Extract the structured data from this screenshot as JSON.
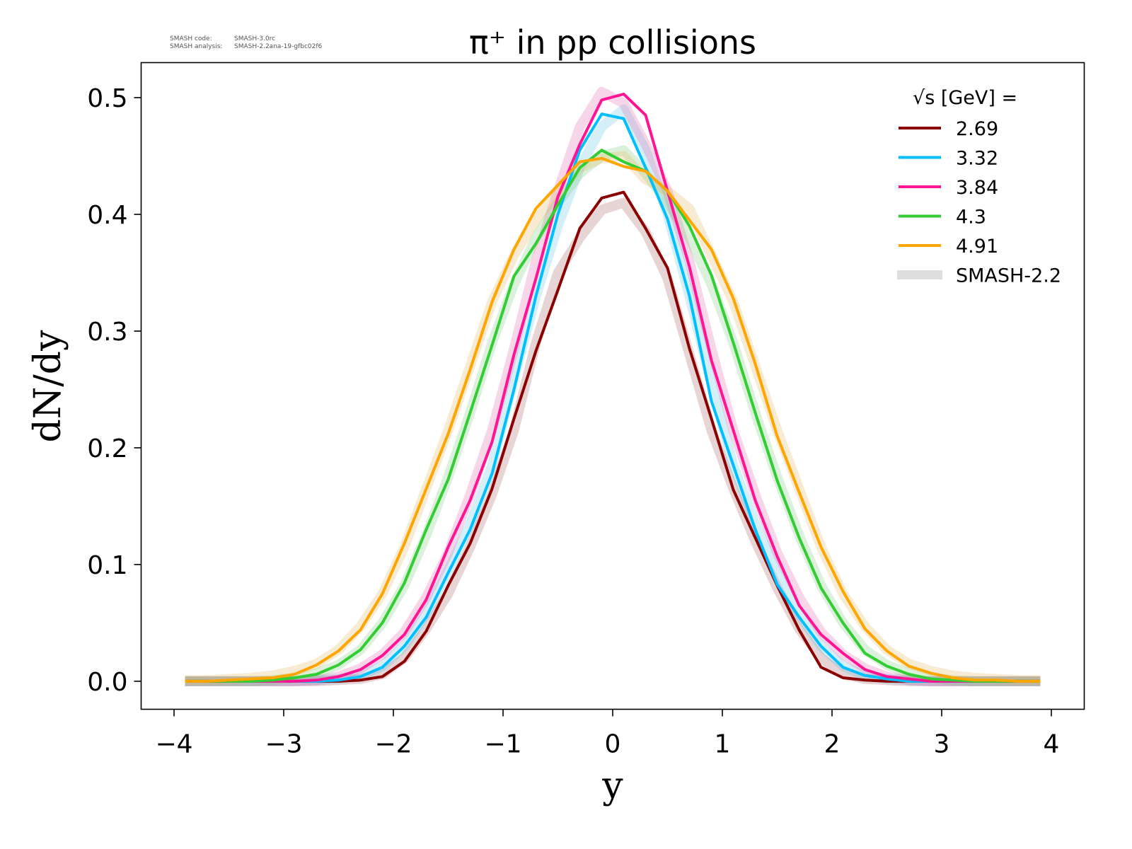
{
  "watermark": {
    "code_label": "SMASH code:",
    "code_value": "SMASH-3.0rc",
    "analysis_label": "SMASH analysis:",
    "analysis_value": "SMASH-2.2ana-19-gfbc02f6"
  },
  "chart_data": {
    "type": "line",
    "title": "π⁺ in pp collisions",
    "xlabel": "y",
    "ylabel": "dN/dy",
    "xlim": [
      -4.3,
      4.3
    ],
    "ylim": [
      -0.024,
      0.53
    ],
    "xticks": [
      "−4",
      "−3",
      "−2",
      "−1",
      "0",
      "1",
      "2",
      "3",
      "4"
    ],
    "xtick_values": [
      -4,
      -3,
      -2,
      -1,
      0,
      1,
      2,
      3,
      4
    ],
    "yticks": [
      "0.0",
      "0.1",
      "0.2",
      "0.3",
      "0.4",
      "0.5"
    ],
    "ytick_values": [
      0,
      0.1,
      0.2,
      0.3,
      0.4,
      0.5
    ],
    "grid": false,
    "legend_title": "√s  [GeV] =",
    "legend_placement": "top-right",
    "reference_label": "SMASH-2.2",
    "reference_color": "#c8c8c8",
    "x": [
      -3.9,
      -3.7,
      -3.5,
      -3.3,
      -3.1,
      -2.9,
      -2.7,
      -2.5,
      -2.3,
      -2.1,
      -1.9,
      -1.7,
      -1.5,
      -1.3,
      -1.1,
      -0.9,
      -0.7,
      -0.5,
      -0.3,
      -0.1,
      0.1,
      0.3,
      0.5,
      0.7,
      0.9,
      1.1,
      1.3,
      1.5,
      1.7,
      1.9,
      2.1,
      2.3,
      2.5,
      2.7,
      2.9,
      3.1,
      3.3,
      3.5,
      3.7,
      3.9
    ],
    "series": [
      {
        "name": "2.69",
        "color": "#8b0000",
        "values": [
          0,
          0,
          0,
          0,
          0,
          0,
          0,
          0,
          0.001,
          0.004,
          0.017,
          0.043,
          0.082,
          0.118,
          0.165,
          0.225,
          0.283,
          0.335,
          0.388,
          0.414,
          0.419,
          0.388,
          0.354,
          0.285,
          0.225,
          0.164,
          0.123,
          0.082,
          0.044,
          0.012,
          0.003,
          0.001,
          0,
          0,
          0,
          0,
          0,
          0,
          0,
          0
        ],
        "reference": [
          0,
          0,
          0,
          0,
          0,
          0,
          0,
          0.001,
          0.002,
          0.006,
          0.02,
          0.045,
          0.075,
          0.115,
          0.16,
          0.215,
          0.29,
          0.35,
          0.38,
          0.404,
          0.41,
          0.385,
          0.345,
          0.28,
          0.215,
          0.165,
          0.12,
          0.08,
          0.045,
          0.02,
          0.006,
          0.002,
          0.001,
          0,
          0,
          0,
          0,
          0,
          0,
          0
        ]
      },
      {
        "name": "3.32",
        "color": "#00bfff",
        "values": [
          0,
          0,
          0,
          0,
          0,
          0,
          0,
          0.001,
          0.004,
          0.012,
          0.03,
          0.055,
          0.093,
          0.13,
          0.178,
          0.25,
          0.33,
          0.4,
          0.455,
          0.486,
          0.482,
          0.44,
          0.396,
          0.33,
          0.24,
          0.185,
          0.13,
          0.083,
          0.055,
          0.03,
          0.012,
          0.005,
          0.002,
          0,
          0,
          0,
          0,
          0,
          0,
          0
        ],
        "reference": [
          0,
          0,
          0,
          0,
          0,
          0,
          0.001,
          0.002,
          0.005,
          0.013,
          0.03,
          0.058,
          0.095,
          0.135,
          0.185,
          0.26,
          0.33,
          0.39,
          0.44,
          0.475,
          0.49,
          0.455,
          0.4,
          0.33,
          0.255,
          0.185,
          0.135,
          0.093,
          0.057,
          0.03,
          0.013,
          0.005,
          0.002,
          0.001,
          0,
          0,
          0,
          0,
          0,
          0
        ]
      },
      {
        "name": "3.84",
        "color": "#ff1493",
        "values": [
          0,
          0,
          0,
          0,
          0,
          0,
          0.001,
          0.004,
          0.01,
          0.022,
          0.04,
          0.07,
          0.115,
          0.155,
          0.205,
          0.28,
          0.345,
          0.415,
          0.46,
          0.498,
          0.503,
          0.485,
          0.42,
          0.355,
          0.275,
          0.215,
          0.155,
          0.107,
          0.065,
          0.04,
          0.024,
          0.01,
          0.004,
          0.002,
          0,
          0,
          0,
          0,
          0,
          0
        ],
        "reference": [
          0,
          0,
          0,
          0,
          0,
          0,
          0.001,
          0.004,
          0.011,
          0.023,
          0.042,
          0.072,
          0.11,
          0.16,
          0.215,
          0.285,
          0.36,
          0.42,
          0.475,
          0.505,
          0.495,
          0.46,
          0.42,
          0.36,
          0.285,
          0.215,
          0.16,
          0.11,
          0.072,
          0.042,
          0.023,
          0.011,
          0.004,
          0.001,
          0,
          0,
          0,
          0,
          0,
          0
        ]
      },
      {
        "name": "4.3",
        "color": "#32cd32",
        "values": [
          0,
          0,
          0,
          0,
          0.001,
          0.003,
          0.006,
          0.014,
          0.027,
          0.05,
          0.084,
          0.13,
          0.173,
          0.23,
          0.288,
          0.347,
          0.375,
          0.408,
          0.44,
          0.455,
          0.445,
          0.437,
          0.42,
          0.39,
          0.348,
          0.29,
          0.23,
          0.172,
          0.123,
          0.08,
          0.05,
          0.024,
          0.013,
          0.006,
          0.002,
          0.001,
          0,
          0,
          0,
          0
        ],
        "reference": [
          0,
          0,
          0,
          0,
          0.001,
          0.003,
          0.007,
          0.014,
          0.027,
          0.05,
          0.082,
          0.125,
          0.175,
          0.23,
          0.29,
          0.34,
          0.38,
          0.41,
          0.435,
          0.45,
          0.455,
          0.435,
          0.41,
          0.38,
          0.34,
          0.29,
          0.23,
          0.175,
          0.125,
          0.082,
          0.05,
          0.027,
          0.014,
          0.007,
          0.003,
          0.001,
          0,
          0,
          0,
          0
        ]
      },
      {
        "name": "4.91",
        "color": "#ffa500",
        "values": [
          0,
          0,
          0.001,
          0.002,
          0.003,
          0.006,
          0.014,
          0.026,
          0.044,
          0.075,
          0.118,
          0.165,
          0.212,
          0.267,
          0.325,
          0.37,
          0.405,
          0.425,
          0.445,
          0.448,
          0.441,
          0.437,
          0.42,
          0.395,
          0.37,
          0.328,
          0.272,
          0.21,
          0.162,
          0.115,
          0.077,
          0.045,
          0.026,
          0.013,
          0.007,
          0.003,
          0.001,
          0.001,
          0,
          0
        ],
        "reference": [
          0.001,
          0.001,
          0.002,
          0.003,
          0.005,
          0.009,
          0.015,
          0.027,
          0.047,
          0.075,
          0.115,
          0.165,
          0.215,
          0.27,
          0.325,
          0.365,
          0.395,
          0.42,
          0.44,
          0.448,
          0.45,
          0.43,
          0.42,
          0.405,
          0.365,
          0.325,
          0.27,
          0.215,
          0.165,
          0.115,
          0.075,
          0.047,
          0.027,
          0.015,
          0.009,
          0.005,
          0.003,
          0.002,
          0.001,
          0.001
        ]
      }
    ]
  }
}
